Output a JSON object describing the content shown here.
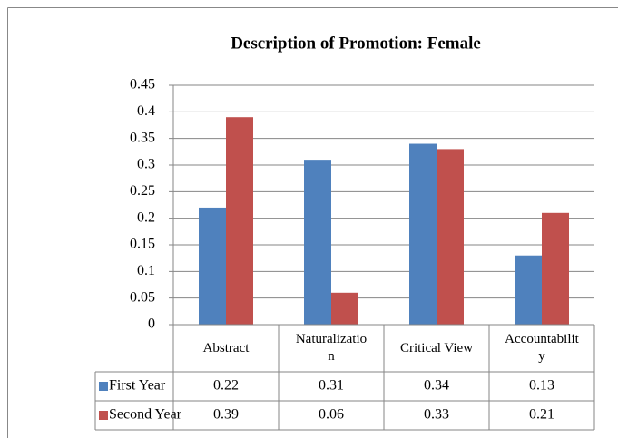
{
  "chart_data": {
    "type": "bar",
    "title": "Description of Promotion: Female",
    "categories": [
      "Abstract",
      "Naturalization",
      "Critical View",
      "Accountability"
    ],
    "series": [
      {
        "name": "First Year",
        "color": "#4f81bd",
        "values": [
          0.22,
          0.31,
          0.34,
          0.13
        ]
      },
      {
        "name": "Second Year",
        "color": "#c0504d",
        "values": [
          0.39,
          0.06,
          0.33,
          0.21
        ]
      }
    ],
    "ylim": [
      0,
      0.45
    ],
    "yticks": [
      0,
      0.05,
      0.1,
      0.15,
      0.2,
      0.25,
      0.3,
      0.35,
      0.4,
      0.45
    ],
    "grid": true,
    "data_table": true
  }
}
